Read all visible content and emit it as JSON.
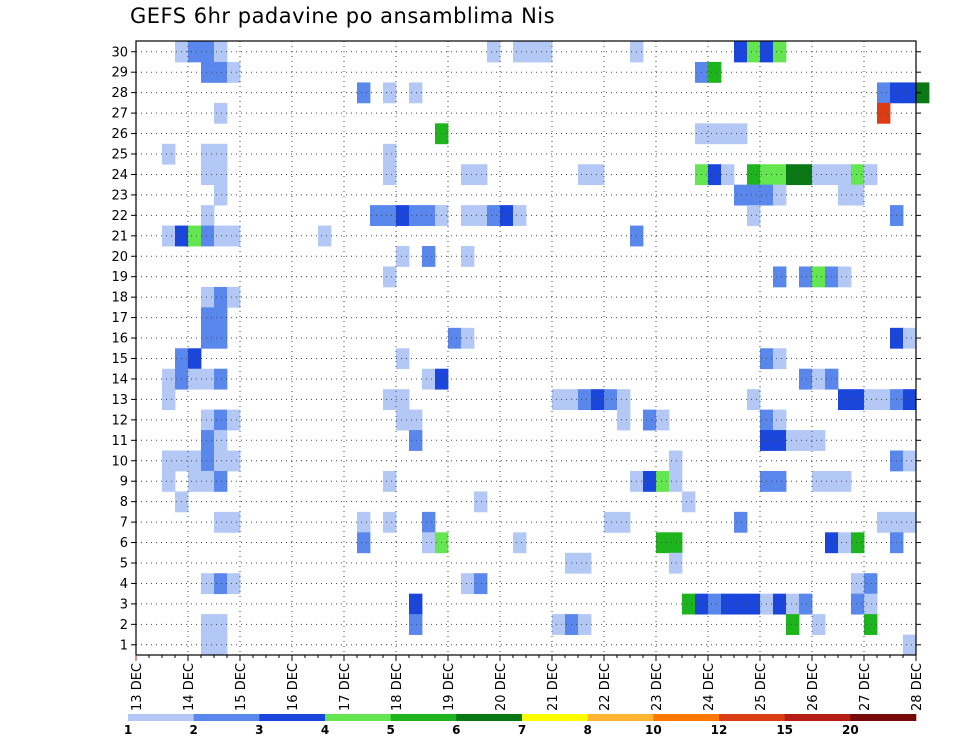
{
  "chart_data": {
    "type": "heatmap",
    "title": "GEFS 6hr padavine po ansamblima Nis",
    "xlabel": "",
    "ylabel": "",
    "x_tick_labels": [
      "13 DEC",
      "14 DEC",
      "15 DEC",
      "16 DEC",
      "17 DEC",
      "18 DEC",
      "19 DEC",
      "20 DEC",
      "21 DEC",
      "22 DEC",
      "23 DEC",
      "24 DEC",
      "25 DEC",
      "26 DEC",
      "27 DEC",
      "28 DEC"
    ],
    "y_tick_labels": [
      1,
      2,
      3,
      4,
      5,
      6,
      7,
      8,
      9,
      10,
      11,
      12,
      13,
      14,
      15,
      16,
      17,
      18,
      19,
      20,
      21,
      22,
      23,
      24,
      25,
      26,
      27,
      28,
      29,
      30
    ],
    "x_unit": "6-hour step from 13 DEC 00Z",
    "y_unit": "ensemble member",
    "grid": true,
    "colorbar": {
      "labels": [
        "1",
        "2",
        "3",
        "4",
        "5",
        "6",
        "7",
        "8",
        "10",
        "12",
        "15",
        "20"
      ],
      "colors": [
        "#b4c8f5",
        "#5a87eb",
        "#1a46dc",
        "#64e650",
        "#1eb41e",
        "#0a7814",
        "#ffff00",
        "#ffb432",
        "#ff7800",
        "#dc3c14",
        "#b41e14",
        "#780a0a"
      ]
    },
    "cells": [
      [
        3,
        30,
        1
      ],
      [
        4,
        30,
        2
      ],
      [
        5,
        30,
        2
      ],
      [
        6,
        30,
        1
      ],
      [
        27,
        30,
        1
      ],
      [
        29,
        30,
        1
      ],
      [
        30,
        30,
        1
      ],
      [
        31,
        30,
        1
      ],
      [
        38,
        30,
        1
      ],
      [
        46,
        30,
        3
      ],
      [
        47,
        30,
        4
      ],
      [
        48,
        30,
        3
      ],
      [
        49,
        30,
        4
      ],
      [
        5,
        29,
        2
      ],
      [
        6,
        29,
        2
      ],
      [
        7,
        29,
        1
      ],
      [
        43,
        29,
        2
      ],
      [
        44,
        29,
        5
      ],
      [
        17,
        28,
        2
      ],
      [
        19,
        28,
        1
      ],
      [
        21,
        28,
        1
      ],
      [
        57,
        28,
        2
      ],
      [
        58,
        28,
        3
      ],
      [
        59,
        28,
        3
      ],
      [
        60,
        28,
        6
      ],
      [
        6,
        27,
        1
      ],
      [
        57,
        27,
        10
      ],
      [
        23,
        26,
        5
      ],
      [
        43,
        26,
        1
      ],
      [
        44,
        26,
        1
      ],
      [
        45,
        26,
        1
      ],
      [
        46,
        26,
        1
      ],
      [
        2,
        25,
        1
      ],
      [
        5,
        25,
        1
      ],
      [
        6,
        25,
        1
      ],
      [
        19,
        25,
        1
      ],
      [
        5,
        24,
        1
      ],
      [
        6,
        24,
        1
      ],
      [
        19,
        24,
        1
      ],
      [
        25,
        24,
        1
      ],
      [
        26,
        24,
        1
      ],
      [
        34,
        24,
        1
      ],
      [
        35,
        24,
        1
      ],
      [
        43,
        24,
        4
      ],
      [
        44,
        24,
        3
      ],
      [
        45,
        24,
        1
      ],
      [
        47,
        24,
        5
      ],
      [
        48,
        24,
        4
      ],
      [
        49,
        24,
        4
      ],
      [
        50,
        24,
        6
      ],
      [
        51,
        24,
        6
      ],
      [
        52,
        24,
        1
      ],
      [
        53,
        24,
        1
      ],
      [
        54,
        24,
        1
      ],
      [
        55,
        24,
        4
      ],
      [
        56,
        24,
        1
      ],
      [
        6,
        23,
        1
      ],
      [
        46,
        23,
        2
      ],
      [
        47,
        23,
        2
      ],
      [
        48,
        23,
        2
      ],
      [
        49,
        23,
        1
      ],
      [
        54,
        23,
        1
      ],
      [
        55,
        23,
        1
      ],
      [
        5,
        22,
        1
      ],
      [
        18,
        22,
        2
      ],
      [
        19,
        22,
        2
      ],
      [
        20,
        22,
        3
      ],
      [
        21,
        22,
        2
      ],
      [
        22,
        22,
        2
      ],
      [
        23,
        22,
        1
      ],
      [
        25,
        22,
        1
      ],
      [
        26,
        22,
        1
      ],
      [
        27,
        22,
        2
      ],
      [
        28,
        22,
        3
      ],
      [
        29,
        22,
        1
      ],
      [
        47,
        22,
        1
      ],
      [
        58,
        22,
        2
      ],
      [
        2,
        21,
        1
      ],
      [
        3,
        21,
        3
      ],
      [
        4,
        21,
        4
      ],
      [
        5,
        21,
        2
      ],
      [
        6,
        21,
        1
      ],
      [
        7,
        21,
        1
      ],
      [
        14,
        21,
        1
      ],
      [
        38,
        21,
        2
      ],
      [
        20,
        20,
        1
      ],
      [
        22,
        20,
        2
      ],
      [
        25,
        20,
        1
      ],
      [
        19,
        19,
        1
      ],
      [
        49,
        19,
        2
      ],
      [
        51,
        19,
        2
      ],
      [
        52,
        19,
        4
      ],
      [
        53,
        19,
        2
      ],
      [
        54,
        19,
        1
      ],
      [
        5,
        18,
        1
      ],
      [
        6,
        18,
        2
      ],
      [
        7,
        18,
        1
      ],
      [
        5,
        17,
        2
      ],
      [
        6,
        17,
        2
      ],
      [
        5,
        16,
        2
      ],
      [
        6,
        16,
        2
      ],
      [
        24,
        16,
        2
      ],
      [
        25,
        16,
        1
      ],
      [
        58,
        16,
        3
      ],
      [
        59,
        16,
        1
      ],
      [
        3,
        15,
        2
      ],
      [
        4,
        15,
        3
      ],
      [
        20,
        15,
        1
      ],
      [
        48,
        15,
        2
      ],
      [
        49,
        15,
        1
      ],
      [
        2,
        14,
        1
      ],
      [
        3,
        14,
        2
      ],
      [
        4,
        14,
        1
      ],
      [
        5,
        14,
        1
      ],
      [
        6,
        14,
        2
      ],
      [
        22,
        14,
        1
      ],
      [
        23,
        14,
        3
      ],
      [
        51,
        14,
        2
      ],
      [
        52,
        14,
        1
      ],
      [
        53,
        14,
        2
      ],
      [
        2,
        13,
        1
      ],
      [
        19,
        13,
        1
      ],
      [
        20,
        13,
        1
      ],
      [
        32,
        13,
        1
      ],
      [
        33,
        13,
        1
      ],
      [
        34,
        13,
        2
      ],
      [
        35,
        13,
        3
      ],
      [
        36,
        13,
        2
      ],
      [
        37,
        13,
        1
      ],
      [
        47,
        13,
        1
      ],
      [
        54,
        13,
        3
      ],
      [
        55,
        13,
        3
      ],
      [
        56,
        13,
        1
      ],
      [
        57,
        13,
        1
      ],
      [
        58,
        13,
        2
      ],
      [
        59,
        13,
        3
      ],
      [
        5,
        12,
        1
      ],
      [
        6,
        12,
        2
      ],
      [
        7,
        12,
        1
      ],
      [
        20,
        12,
        1
      ],
      [
        21,
        12,
        1
      ],
      [
        37,
        12,
        1
      ],
      [
        39,
        12,
        2
      ],
      [
        40,
        12,
        1
      ],
      [
        48,
        12,
        2
      ],
      [
        49,
        12,
        1
      ],
      [
        5,
        11,
        2
      ],
      [
        6,
        11,
        1
      ],
      [
        21,
        11,
        2
      ],
      [
        48,
        11,
        3
      ],
      [
        49,
        11,
        3
      ],
      [
        50,
        11,
        1
      ],
      [
        51,
        11,
        1
      ],
      [
        52,
        11,
        1
      ],
      [
        2,
        10,
        1
      ],
      [
        3,
        10,
        1
      ],
      [
        4,
        10,
        1
      ],
      [
        5,
        10,
        2
      ],
      [
        6,
        10,
        1
      ],
      [
        7,
        10,
        1
      ],
      [
        41,
        10,
        1
      ],
      [
        58,
        10,
        2
      ],
      [
        59,
        10,
        1
      ],
      [
        2,
        9,
        1
      ],
      [
        4,
        9,
        1
      ],
      [
        5,
        9,
        1
      ],
      [
        6,
        9,
        2
      ],
      [
        19,
        9,
        1
      ],
      [
        38,
        9,
        1
      ],
      [
        39,
        9,
        3
      ],
      [
        40,
        9,
        4
      ],
      [
        41,
        9,
        1
      ],
      [
        48,
        9,
        2
      ],
      [
        49,
        9,
        2
      ],
      [
        52,
        9,
        1
      ],
      [
        53,
        9,
        1
      ],
      [
        54,
        9,
        1
      ],
      [
        3,
        8,
        1
      ],
      [
        26,
        8,
        1
      ],
      [
        42,
        8,
        1
      ],
      [
        6,
        7,
        1
      ],
      [
        7,
        7,
        1
      ],
      [
        17,
        7,
        1
      ],
      [
        19,
        7,
        1
      ],
      [
        22,
        7,
        2
      ],
      [
        36,
        7,
        1
      ],
      [
        37,
        7,
        1
      ],
      [
        46,
        7,
        2
      ],
      [
        57,
        7,
        1
      ],
      [
        58,
        7,
        1
      ],
      [
        59,
        7,
        1
      ],
      [
        17,
        6,
        2
      ],
      [
        22,
        6,
        1
      ],
      [
        23,
        6,
        4
      ],
      [
        29,
        6,
        1
      ],
      [
        40,
        6,
        5
      ],
      [
        41,
        6,
        5
      ],
      [
        53,
        6,
        3
      ],
      [
        54,
        6,
        1
      ],
      [
        55,
        6,
        5
      ],
      [
        58,
        6,
        2
      ],
      [
        33,
        5,
        1
      ],
      [
        34,
        5,
        1
      ],
      [
        41,
        5,
        1
      ],
      [
        5,
        4,
        1
      ],
      [
        6,
        4,
        2
      ],
      [
        7,
        4,
        1
      ],
      [
        25,
        4,
        1
      ],
      [
        26,
        4,
        2
      ],
      [
        55,
        4,
        1
      ],
      [
        56,
        4,
        2
      ],
      [
        21,
        3,
        3
      ],
      [
        42,
        3,
        5
      ],
      [
        43,
        3,
        3
      ],
      [
        44,
        3,
        2
      ],
      [
        45,
        3,
        3
      ],
      [
        46,
        3,
        3
      ],
      [
        47,
        3,
        3
      ],
      [
        48,
        3,
        1
      ],
      [
        49,
        3,
        3
      ],
      [
        50,
        3,
        1
      ],
      [
        51,
        3,
        2
      ],
      [
        55,
        3,
        2
      ],
      [
        56,
        3,
        1
      ],
      [
        5,
        2,
        1
      ],
      [
        6,
        2,
        1
      ],
      [
        21,
        2,
        2
      ],
      [
        32,
        2,
        1
      ],
      [
        33,
        2,
        2
      ],
      [
        34,
        2,
        1
      ],
      [
        50,
        2,
        5
      ],
      [
        52,
        2,
        1
      ],
      [
        56,
        2,
        5
      ],
      [
        5,
        1,
        1
      ],
      [
        6,
        1,
        1
      ],
      [
        59,
        1,
        1
      ]
    ]
  }
}
